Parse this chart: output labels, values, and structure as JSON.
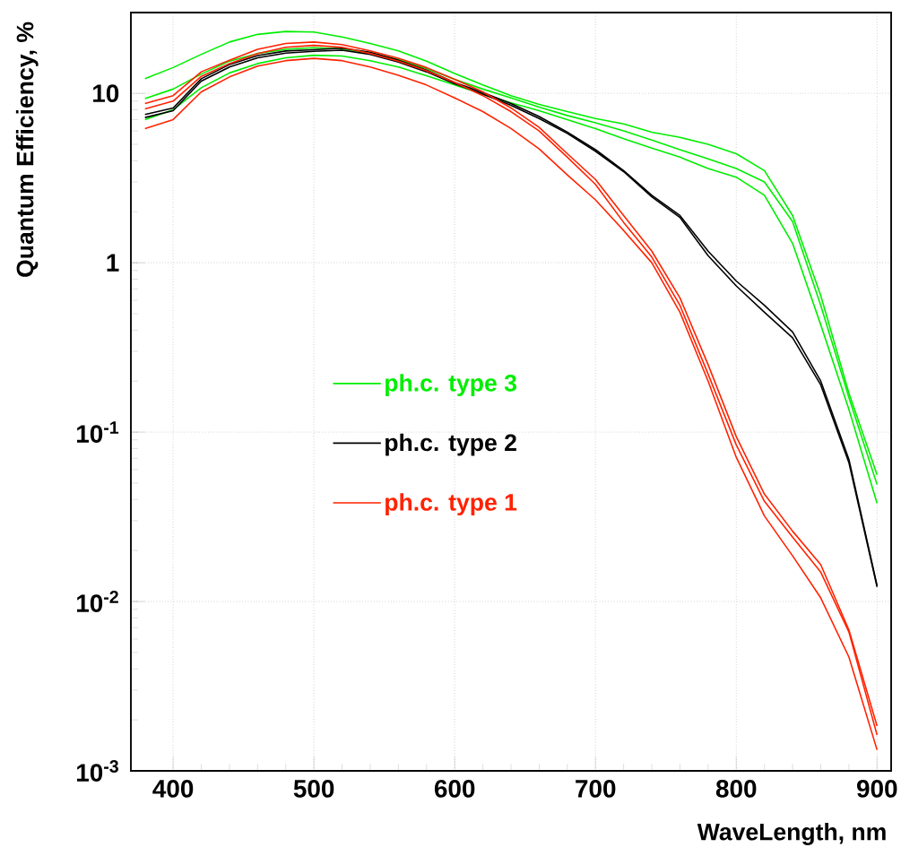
{
  "chart_data": {
    "type": "line",
    "xlabel": "WaveLength, nm",
    "ylabel": "Quantum Efficiency, %",
    "x": [
      380,
      400,
      420,
      440,
      460,
      480,
      500,
      520,
      540,
      560,
      580,
      600,
      620,
      640,
      660,
      680,
      700,
      720,
      740,
      760,
      780,
      800,
      820,
      840,
      860,
      880,
      900
    ],
    "series": [
      {
        "name": "ph.c. type 3",
        "color": "#00ee00",
        "values": [
          12.2,
          14.2,
          17.0,
          20.1,
          22.3,
          23.2,
          23.0,
          21.5,
          19.7,
          17.8,
          15.5,
          13.1,
          11.2,
          9.7,
          8.6,
          7.8,
          7.1,
          6.6,
          5.9,
          5.5,
          5.0,
          4.4,
          3.5,
          1.9,
          0.64,
          0.17,
          0.056
        ]
      },
      {
        "color": "#00ee00",
        "values": [
          9.3,
          10.6,
          13.0,
          15.5,
          17.2,
          18.2,
          18.6,
          18.3,
          17.2,
          15.8,
          14.0,
          12.1,
          10.6,
          9.4,
          8.3,
          7.4,
          6.7,
          6.0,
          5.3,
          4.65,
          4.1,
          3.6,
          3.0,
          1.75,
          0.56,
          0.16,
          0.049
        ]
      },
      {
        "color": "#00ee00",
        "values": [
          7.0,
          8.0,
          10.8,
          13.2,
          15.0,
          16.2,
          16.8,
          16.6,
          15.6,
          14.3,
          12.7,
          11.2,
          9.9,
          8.8,
          7.9,
          7.0,
          6.2,
          5.4,
          4.75,
          4.2,
          3.6,
          3.2,
          2.5,
          1.3,
          0.43,
          0.136,
          0.038
        ]
      },
      {
        "name": "ph.c. type 2",
        "color": "#000000",
        "values": [
          7.5,
          8.2,
          12.2,
          14.8,
          16.7,
          17.8,
          18.1,
          18.5,
          17.5,
          15.7,
          13.7,
          11.6,
          10.1,
          8.7,
          7.3,
          5.9,
          4.65,
          3.5,
          2.5,
          1.9,
          1.17,
          0.78,
          0.56,
          0.39,
          0.2,
          0.069,
          0.0124
        ]
      },
      {
        "color": "#000000",
        "values": [
          7.2,
          7.9,
          11.8,
          14.3,
          16.2,
          17.3,
          17.7,
          18.0,
          17.0,
          15.3,
          13.4,
          11.4,
          9.9,
          8.5,
          7.1,
          5.8,
          4.55,
          3.45,
          2.45,
          1.85,
          1.1,
          0.73,
          0.51,
          0.36,
          0.19,
          0.066,
          0.0122
        ]
      },
      {
        "name": "ph.c. type 1",
        "color": "#ff2200",
        "values": [
          8.7,
          9.7,
          13.4,
          15.7,
          18.2,
          19.7,
          20.1,
          19.4,
          17.8,
          16.1,
          14.2,
          12.1,
          10.2,
          8.2,
          6.3,
          4.4,
          3.1,
          1.9,
          1.17,
          0.62,
          0.25,
          0.094,
          0.043,
          0.026,
          0.0165,
          0.0068,
          0.00184
        ]
      },
      {
        "color": "#ff2200",
        "values": [
          8.1,
          9.0,
          12.6,
          15.0,
          17.2,
          18.7,
          19.2,
          18.7,
          17.2,
          15.5,
          13.6,
          11.6,
          9.7,
          7.8,
          6.0,
          4.2,
          2.9,
          1.73,
          1.08,
          0.56,
          0.22,
          0.084,
          0.039,
          0.024,
          0.0149,
          0.0066,
          0.00163
        ]
      },
      {
        "color": "#ff2200",
        "values": [
          6.2,
          7.0,
          10.2,
          12.5,
          14.5,
          15.6,
          16.1,
          15.6,
          14.3,
          12.8,
          11.2,
          9.4,
          7.8,
          6.2,
          4.7,
          3.3,
          2.35,
          1.55,
          1.0,
          0.51,
          0.2,
          0.071,
          0.032,
          0.0186,
          0.0105,
          0.0047,
          0.00133
        ]
      }
    ],
    "xlim": [
      370,
      910
    ],
    "ylim": [
      0.001,
      30
    ],
    "xticks": [
      400,
      500,
      600,
      700,
      800,
      900
    ],
    "yticks": [
      {
        "value": 0.001,
        "label": "10$^{-3}$"
      },
      {
        "value": 0.01,
        "label": "10$^{-2}$"
      },
      {
        "value": 0.1,
        "label": "10$^{-1}$"
      },
      1,
      10
    ],
    "log": "y",
    "grid": true,
    "legend": "left"
  }
}
